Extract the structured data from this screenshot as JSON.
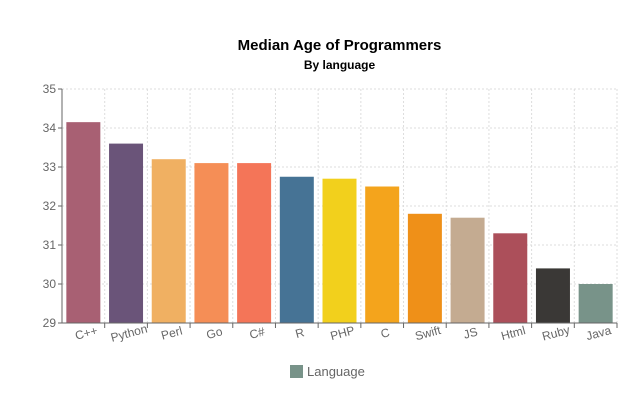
{
  "chart_data": {
    "type": "bar",
    "title": "Median Age of Programmers",
    "subtitle": "By language",
    "xlabel": "",
    "ylabel": "",
    "categories": [
      "C++",
      "Python",
      "Perl",
      "Go",
      "C#",
      "R",
      "PHP",
      "C",
      "Swift",
      "JS",
      "Html",
      "Ruby",
      "Java"
    ],
    "values": [
      34.15,
      33.6,
      33.2,
      33.1,
      33.1,
      32.75,
      32.7,
      32.5,
      31.8,
      31.7,
      31.3,
      30.4,
      30.0
    ],
    "colors": [
      "#a86073",
      "#6a5479",
      "#f0b062",
      "#f58e56",
      "#f47558",
      "#467395",
      "#f2d01c",
      "#f4a41c",
      "#ef9018",
      "#c4ab91",
      "#ac4f5a",
      "#3a3836",
      "#789389"
    ],
    "ylim": [
      29,
      35
    ],
    "yticks": [
      29,
      30,
      31,
      32,
      33,
      34,
      35
    ],
    "grid": true,
    "legend": {
      "label": "Language",
      "color": "#789389",
      "placement": "bottom-center"
    }
  }
}
